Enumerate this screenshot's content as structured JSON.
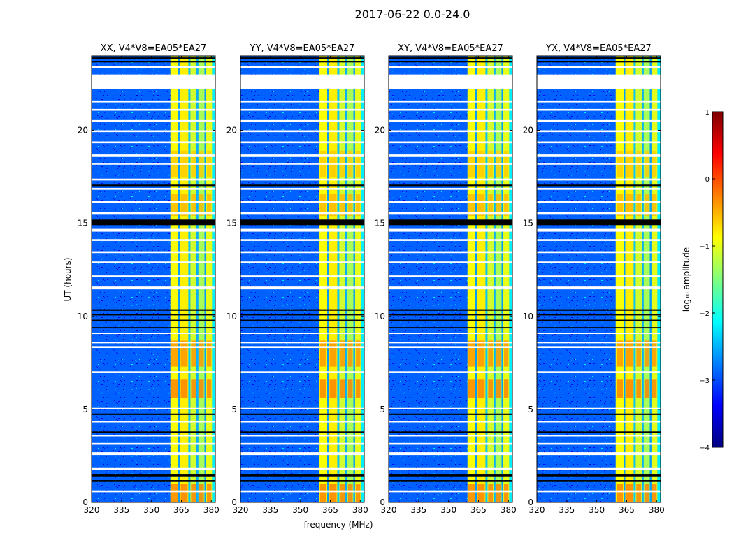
{
  "figure": {
    "suptitle": "2017-06-22 0.0-24.0"
  },
  "colors": {
    "jet": [
      "#00007f",
      "#0000ff",
      "#007fff",
      "#00ffff",
      "#7fff7f",
      "#ffff00",
      "#ff7f00",
      "#ff0000",
      "#7f0000"
    ],
    "flag_white": "#ffffff",
    "flag_black": "#000000"
  },
  "chart_data": {
    "type": "heatmap",
    "xlabel": "frequency (MHz)",
    "ylabel": "UT (hours)",
    "xlim": [
      320,
      382
    ],
    "ylim": [
      0,
      24
    ],
    "x_ticks": [
      320,
      335,
      350,
      365,
      380
    ],
    "y_ticks": [
      0,
      5,
      10,
      15,
      20
    ],
    "x_tick_labels": [
      "320",
      "335",
      "350",
      "365",
      "380"
    ],
    "y_tick_labels": [
      "0",
      "5",
      "10",
      "15",
      "20"
    ],
    "panels": [
      {
        "title": "XX, V4*V8=EA05*EA27"
      },
      {
        "title": "YY, V4*V8=EA05*EA27"
      },
      {
        "title": "XY, V4*V8=EA05*EA27"
      },
      {
        "title": "YX, V4*V8=EA05*EA27"
      }
    ],
    "band": {
      "freq_range": [
        359.5,
        382
      ],
      "strips": [
        {
          "f": [
            359.5,
            363.5
          ],
          "level": -0.9
        },
        {
          "f": [
            363.5,
            364.3
          ],
          "level": -2.6
        },
        {
          "f": [
            364.3,
            368.5
          ],
          "level": -0.8
        },
        {
          "f": [
            368.5,
            369.5
          ],
          "level": -2.4
        },
        {
          "f": [
            369.5,
            372.6
          ],
          "level": -1.1
        },
        {
          "f": [
            372.6,
            373.5
          ],
          "level": -2.5
        },
        {
          "f": [
            373.5,
            376.6
          ],
          "level": -1.3
        },
        {
          "f": [
            376.6,
            377.4
          ],
          "level": -2.6
        },
        {
          "f": [
            377.4,
            380.4
          ],
          "level": -1.0
        },
        {
          "f": [
            380.4,
            382
          ],
          "level": -2.2
        }
      ],
      "hot_spots": [
        {
          "t": [
            5.6,
            6.6
          ],
          "level": -0.2
        },
        {
          "t": [
            7.3,
            8.7
          ],
          "level": -0.3
        },
        {
          "t": [
            0.0,
            1.0
          ],
          "level": -0.2
        },
        {
          "t": [
            15.4,
            16.6
          ],
          "level": -0.5
        },
        {
          "t": [
            17.5,
            18.9
          ],
          "level": -0.6
        }
      ]
    },
    "background_level": -2.9,
    "flag_white_hours": [
      [
        0.55,
        0.65
      ],
      [
        1.75,
        1.85
      ],
      [
        2.55,
        2.7
      ],
      [
        3.1,
        3.2
      ],
      [
        3.55,
        3.62
      ],
      [
        4.3,
        4.36
      ],
      [
        5.0,
        5.08
      ],
      [
        6.95,
        7.05
      ],
      [
        8.3,
        8.4
      ],
      [
        8.55,
        8.62
      ],
      [
        9.05,
        9.12
      ],
      [
        11.45,
        11.6
      ],
      [
        12.1,
        12.2
      ],
      [
        12.85,
        12.95
      ],
      [
        13.4,
        13.5
      ],
      [
        14.05,
        14.15
      ],
      [
        14.55,
        14.7
      ],
      [
        15.5,
        15.6
      ],
      [
        16.1,
        16.2
      ],
      [
        16.8,
        16.9
      ],
      [
        17.3,
        17.4
      ],
      [
        18.15,
        18.25
      ],
      [
        18.6,
        18.7
      ],
      [
        19.3,
        19.4
      ],
      [
        19.9,
        20.0
      ],
      [
        20.45,
        20.55
      ],
      [
        21.05,
        21.15
      ],
      [
        21.5,
        21.6
      ],
      [
        22.2,
        23.0
      ],
      [
        23.35,
        23.45
      ]
    ],
    "flag_black_hours": [
      [
        1.1,
        1.2
      ],
      [
        1.4,
        1.5
      ],
      [
        3.75,
        3.82
      ],
      [
        4.7,
        4.78
      ],
      [
        9.35,
        9.42
      ],
      [
        9.75,
        9.82
      ],
      [
        10.05,
        10.12
      ],
      [
        10.3,
        10.38
      ],
      [
        14.9,
        15.2
      ],
      [
        17.0,
        17.08
      ],
      [
        23.65,
        23.72
      ],
      [
        23.85,
        23.92
      ]
    ],
    "colorbar": {
      "label": "log₁₀ amplitude",
      "vmin": -4,
      "vmax": 1,
      "ticks": [
        "1",
        "0",
        "−1",
        "−2",
        "−3",
        "−4"
      ],
      "tick_values": [
        1,
        0,
        -1,
        -2,
        -3,
        -4
      ]
    }
  }
}
